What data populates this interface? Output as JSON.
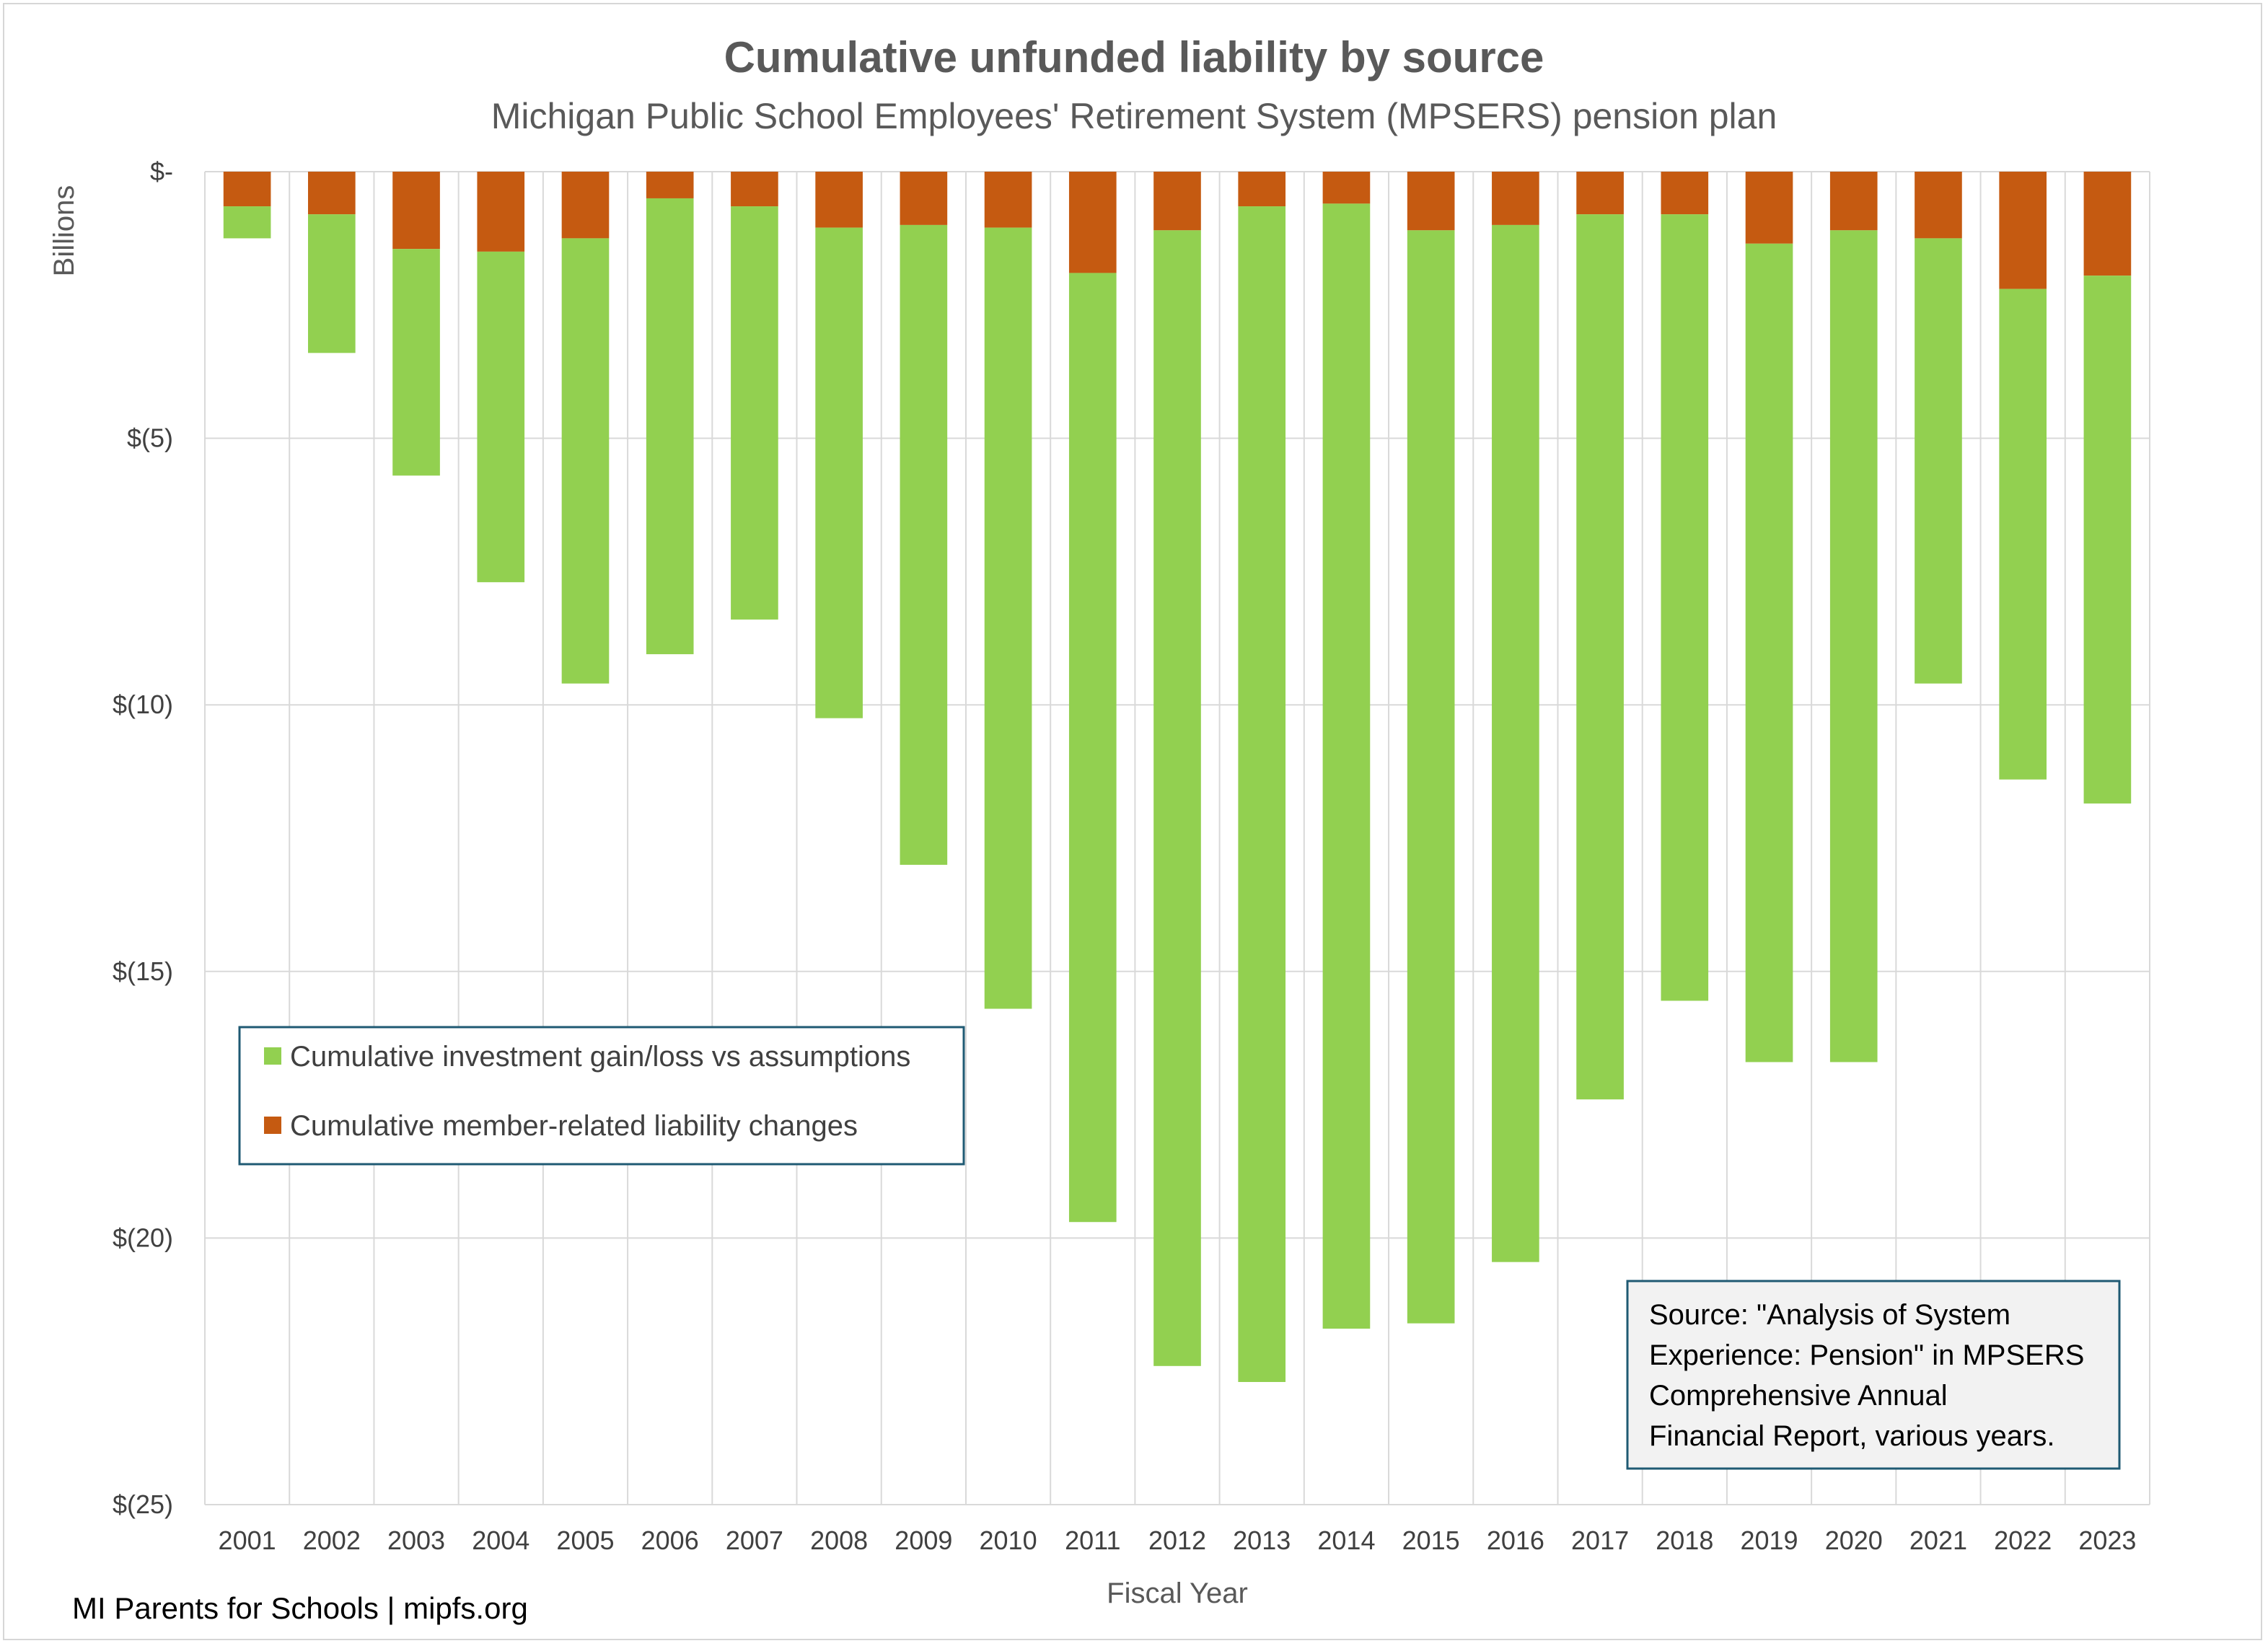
{
  "chart_data": {
    "type": "bar",
    "stacked": true,
    "title": "Cumulative unfunded liability by source",
    "subtitle": "Michigan Public School Employees' Retirement System (MPSERS) pension plan",
    "xlabel": "Fiscal Year",
    "ylabel": "Billions",
    "ylim": [
      -25,
      0
    ],
    "yticks": [
      {
        "value": 0,
        "label": "$-"
      },
      {
        "value": -5,
        "label": "$(5)"
      },
      {
        "value": -10,
        "label": "$(10)"
      },
      {
        "value": -15,
        "label": "$(15)"
      },
      {
        "value": -20,
        "label": "$(20)"
      },
      {
        "value": -25,
        "label": "$(25)"
      }
    ],
    "categories": [
      "2001",
      "2002",
      "2003",
      "2004",
      "2005",
      "2006",
      "2007",
      "2008",
      "2009",
      "2010",
      "2011",
      "2012",
      "2013",
      "2014",
      "2015",
      "2016",
      "2017",
      "2018",
      "2019",
      "2020",
      "2021",
      "2022",
      "2023"
    ],
    "series": [
      {
        "name": "Cumulative member-related liability changes",
        "color": "#c55a11",
        "values": [
          -0.65,
          -0.8,
          -1.45,
          -1.5,
          -1.25,
          -0.5,
          -0.65,
          -1.05,
          -1.0,
          -1.05,
          -1.9,
          -1.1,
          -0.65,
          -0.6,
          -1.1,
          -1.0,
          -0.8,
          -0.8,
          -1.35,
          -1.1,
          -1.25,
          -2.2,
          -1.95
        ]
      },
      {
        "name": "Cumulative investment gain/loss vs assumptions",
        "color": "#92d050",
        "values": [
          -0.6,
          -2.6,
          -4.25,
          -6.2,
          -8.35,
          -8.55,
          -7.75,
          -9.2,
          -12.0,
          -14.65,
          -17.8,
          -21.3,
          -22.05,
          -21.1,
          -20.5,
          -19.45,
          -16.6,
          -14.75,
          -15.35,
          -15.6,
          -8.35,
          -9.2,
          -9.9
        ]
      }
    ],
    "legend": {
      "placement": "middle-left",
      "entries": [
        {
          "label": "Cumulative investment gain/loss vs assumptions",
          "color": "#92d050"
        },
        {
          "label": "Cumulative member-related liability changes",
          "color": "#c55a11"
        }
      ]
    },
    "annotation": {
      "lines": [
        "Source: \"Analysis of System",
        "Experience: Pension\" in MPSERS",
        "Comprehensive Annual",
        "Financial Report, various years."
      ]
    },
    "grid": true
  },
  "footer": "MI Parents for Schools | mipfs.org"
}
